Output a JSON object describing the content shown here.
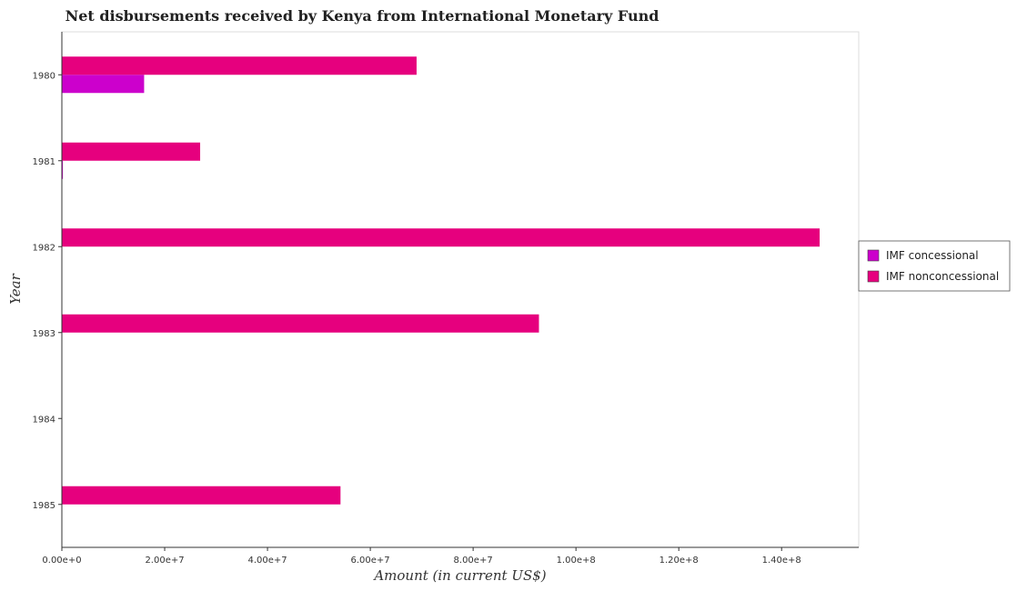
{
  "chart_data": {
    "type": "bar",
    "orientation": "horizontal",
    "title": "Net disbursements received by Kenya from International Monetary Fund",
    "xlabel": "Amount (in current US$)",
    "ylabel": "Year",
    "categories": [
      "1980",
      "1981",
      "1982",
      "1983",
      "1984",
      "1985"
    ],
    "series": [
      {
        "name": "IMF concessional",
        "color": "#cc00cc",
        "values": [
          16000000,
          200000,
          0,
          0,
          0,
          0
        ]
      },
      {
        "name": "IMF nonconcessional",
        "color": "#e6007e",
        "values": [
          69000000,
          26900000,
          147400000,
          92800000,
          0,
          54200000
        ]
      }
    ],
    "xticks": [
      0,
      20000000,
      40000000,
      60000000,
      80000000,
      100000000,
      120000000,
      140000000
    ],
    "xtick_labels": [
      "0.00e+0",
      "2.00e+7",
      "4.00e+7",
      "6.00e+7",
      "8.00e+7",
      "1.00e+8",
      "1.20e+8",
      "1.40e+8"
    ],
    "xlim": [
      0,
      155000000
    ],
    "grid": false,
    "legend_position": "right"
  }
}
